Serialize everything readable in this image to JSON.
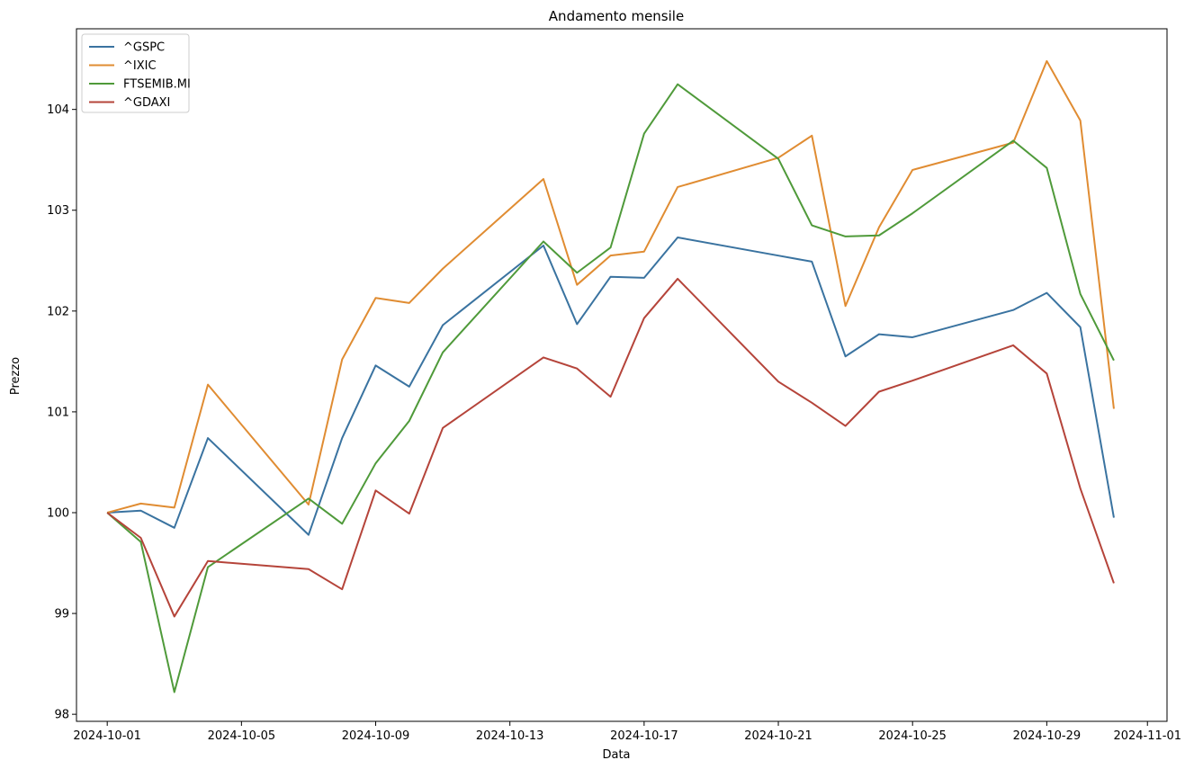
{
  "chart_data": {
    "type": "line",
    "title": "Andamento mensile",
    "xlabel": "Data",
    "ylabel": "Prezzo",
    "ylim": [
      97.93,
      104.8
    ],
    "xlim": [
      "2024-09-30T02:00",
      "2024-11-01T14:00"
    ],
    "yticks": [
      98,
      99,
      100,
      101,
      102,
      103,
      104
    ],
    "xticks": [
      "2024-10-01",
      "2024-10-05",
      "2024-10-09",
      "2024-10-13",
      "2024-10-17",
      "2024-10-21",
      "2024-10-25",
      "2024-10-29",
      "2024-11-01"
    ],
    "grid": false,
    "legend_position": "top-left",
    "x": [
      "2024-10-01",
      "2024-10-02",
      "2024-10-03",
      "2024-10-04",
      "2024-10-07",
      "2024-10-08",
      "2024-10-09",
      "2024-10-10",
      "2024-10-11",
      "2024-10-14",
      "2024-10-15",
      "2024-10-16",
      "2024-10-17",
      "2024-10-18",
      "2024-10-21",
      "2024-10-22",
      "2024-10-23",
      "2024-10-24",
      "2024-10-25",
      "2024-10-28",
      "2024-10-29",
      "2024-10-30",
      "2024-10-31"
    ],
    "series": [
      {
        "name": "^GSPC",
        "color": "#3a73a0",
        "values": [
          100.0,
          100.02,
          99.85,
          100.74,
          99.78,
          100.74,
          101.46,
          101.25,
          101.86,
          102.65,
          101.87,
          102.34,
          102.33,
          102.73,
          102.55,
          102.49,
          101.55,
          101.77,
          101.74,
          102.01,
          102.18,
          101.84,
          99.95
        ]
      },
      {
        "name": "^IXIC",
        "color": "#e08c32",
        "values": [
          100.0,
          100.09,
          100.05,
          101.27,
          100.08,
          101.52,
          102.13,
          102.08,
          102.42,
          103.31,
          102.26,
          102.55,
          102.59,
          103.23,
          103.52,
          103.74,
          102.05,
          102.83,
          103.4,
          103.67,
          104.48,
          103.89,
          101.03
        ]
      },
      {
        "name": "FTSEMIB.MI",
        "color": "#4f9a3a",
        "values": [
          100.0,
          99.71,
          98.22,
          99.46,
          100.14,
          99.89,
          100.49,
          100.91,
          101.59,
          102.69,
          102.38,
          102.63,
          103.76,
          104.25,
          103.51,
          102.85,
          102.74,
          102.75,
          102.97,
          103.69,
          103.42,
          102.17,
          101.51
        ]
      },
      {
        "name": "^GDAXI",
        "color": "#b5443a",
        "values": [
          100.0,
          99.75,
          98.97,
          99.52,
          99.44,
          99.24,
          100.22,
          99.99,
          100.84,
          101.54,
          101.43,
          101.15,
          101.93,
          102.32,
          101.3,
          101.09,
          100.86,
          101.2,
          101.31,
          101.66,
          101.38,
          100.24,
          99.3
        ]
      }
    ]
  }
}
